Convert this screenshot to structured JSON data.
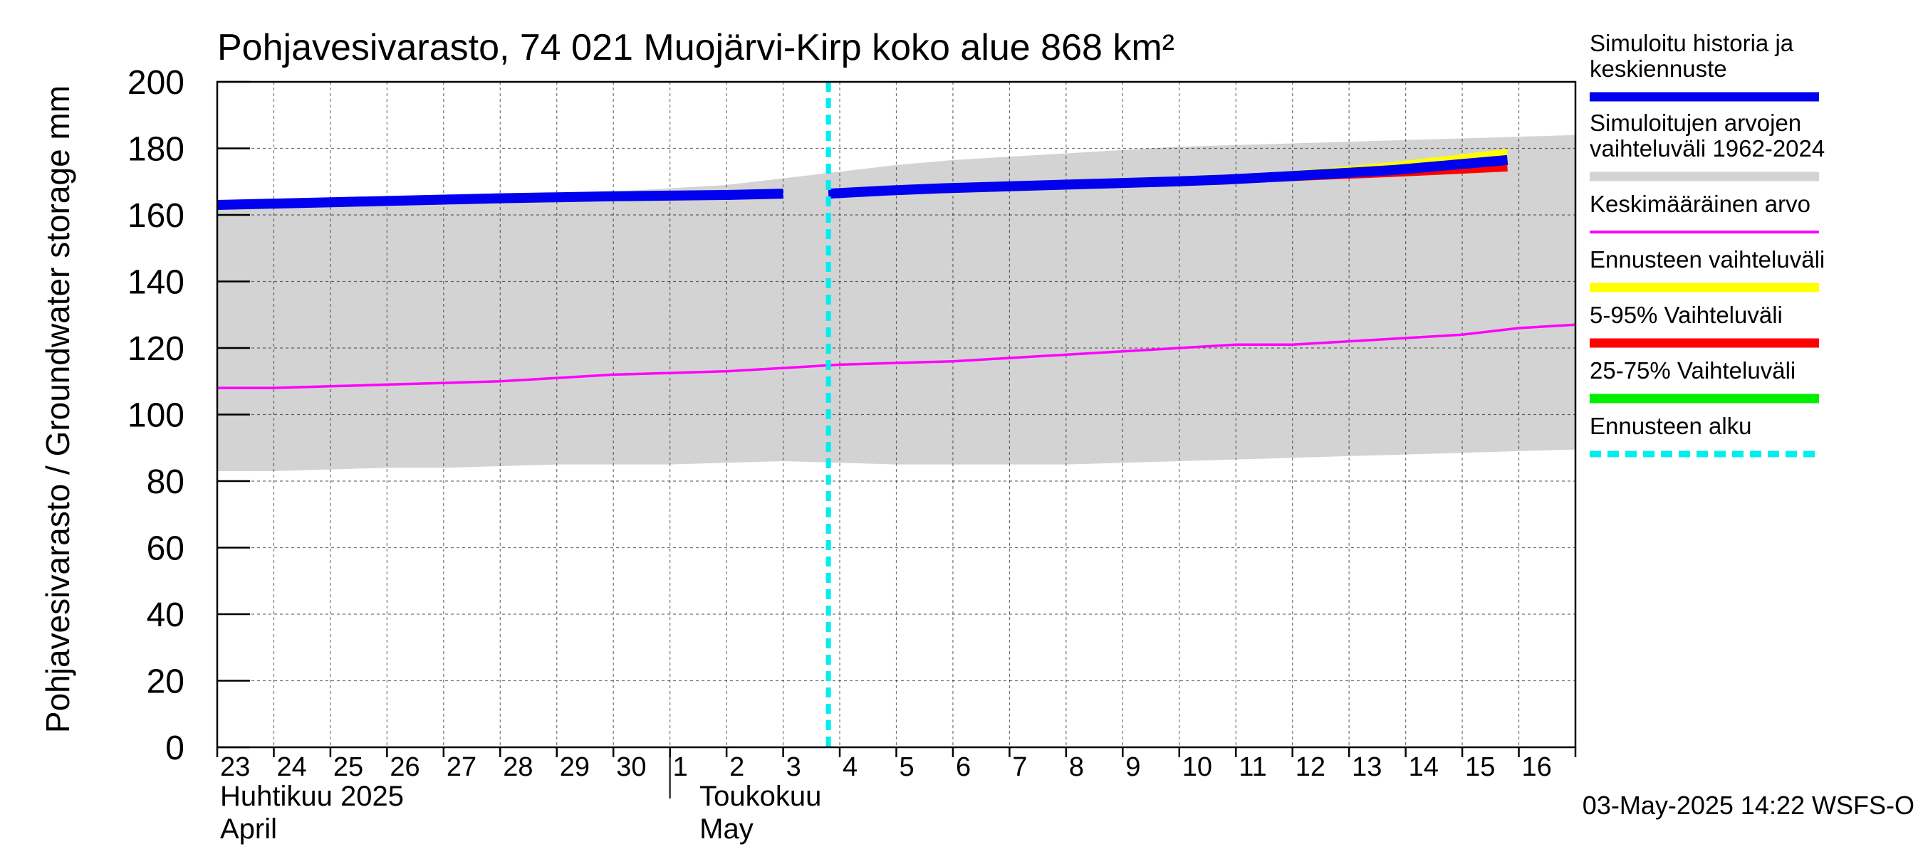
{
  "chart_data": {
    "type": "line",
    "title": "Pohjavesivarasto, 74 021 Muojärvi-Kirp koko alue 868 km²",
    "ylabel": "Pohjavesivarasto / Groundwater storage   mm",
    "ylim": [
      0,
      200
    ],
    "yticks": [
      0,
      20,
      40,
      60,
      80,
      100,
      120,
      140,
      160,
      180,
      200
    ],
    "grid": true,
    "legend_placement": "right",
    "x_tick_labels": [
      "23",
      "24",
      "25",
      "26",
      "27",
      "28",
      "29",
      "30",
      "1",
      "2",
      "3",
      "4",
      "5",
      "6",
      "7",
      "8",
      "9",
      "10",
      "11",
      "12",
      "13",
      "14",
      "15",
      "16"
    ],
    "month_labels": [
      {
        "fi": "Huhtikuu  2025",
        "en": "April"
      },
      {
        "fi": "Toukokuu",
        "en": "May"
      }
    ],
    "timestamp": "03-May-2025 14:22 WSFS-O",
    "forecast_start_day": 10.8,
    "range_min": [
      83,
      83,
      83.5,
      84,
      84,
      84.5,
      85,
      85,
      85,
      85.5,
      86,
      85.5,
      85,
      85,
      85,
      85,
      85.5,
      86,
      86.5,
      87,
      87.5,
      88,
      88.5,
      89,
      89.5
    ],
    "range_max": [
      162,
      162,
      162.5,
      163,
      164,
      165,
      166,
      167,
      168,
      169,
      171,
      173,
      175,
      176.5,
      177.5,
      178.5,
      179.5,
      180.5,
      181,
      181.5,
      182,
      182.5,
      183,
      183.5,
      184
    ],
    "mean": [
      108,
      108,
      108.5,
      109,
      109.5,
      110,
      111,
      112,
      112.5,
      113,
      114,
      115,
      115.5,
      116,
      117,
      118,
      119,
      120,
      121,
      121,
      122,
      123,
      124,
      126,
      127
    ],
    "history": [
      163,
      163.4,
      163.8,
      164.2,
      164.6,
      165,
      165.3,
      165.6,
      165.8,
      166,
      166.4
    ],
    "fc_mid": [
      166.4,
      167.3,
      168,
      168.5,
      169,
      169.5,
      170,
      170.6,
      171.5,
      172.5,
      173.5,
      175,
      176.5
    ],
    "fc_low": [
      166.4,
      167.3,
      168,
      168.5,
      169,
      169.4,
      169.9,
      170.4,
      171,
      171.7,
      172.4,
      173.2,
      174
    ],
    "fc_high": [
      166.4,
      167.3,
      168,
      168.5,
      169.1,
      169.7,
      170.3,
      171.1,
      172.3,
      173.7,
      175.3,
      177.2,
      179.2
    ],
    "legend": [
      {
        "label": "Simuloitu historia ja\nkeskiennuste",
        "color": "#0000ee",
        "style": "thick"
      },
      {
        "label": "Simuloitujen arvojen\nvaihteluväli 1962-2024",
        "color": "#d3d3d3",
        "style": "thick"
      },
      {
        "label": "Keskimääräinen arvo",
        "color": "#ff00ff",
        "style": "thin"
      },
      {
        "label": "Ennusteen vaihteluväli",
        "color": "#ffff00",
        "style": "thick"
      },
      {
        "label": "5-95% Vaihteluväli",
        "color": "#ff0000",
        "style": "thick"
      },
      {
        "label": "25-75% Vaihteluväli",
        "color": "#00ee00",
        "style": "thick"
      },
      {
        "label": "Ennusteen alku",
        "color": "#00eeee",
        "style": "dashed"
      }
    ]
  }
}
